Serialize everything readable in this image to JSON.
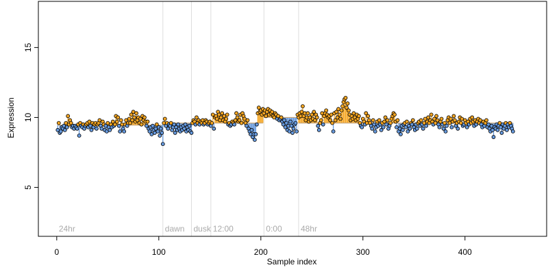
{
  "chart_data": {
    "type": "scatter",
    "title": "",
    "xlabel": "Sample index",
    "ylabel": "Expression",
    "xlim": [
      -18,
      480
    ],
    "ylim": [
      1.5,
      18.3
    ],
    "xticks": [
      0,
      100,
      200,
      300,
      400
    ],
    "xtick_labels": [
      "0",
      "100",
      "200",
      "300",
      "400"
    ],
    "yticks": [
      5,
      10,
      15
    ],
    "ytick_labels": [
      "5",
      "10",
      "15"
    ],
    "grid": false,
    "colors": {
      "above_baseline": "#f5a623",
      "below_baseline": "#6699dd",
      "marker_edge": "#000000",
      "segment_divider": "#dddddd",
      "segment_label": "#aaaaaa"
    },
    "segments": [
      {
        "label": "24hr",
        "start": 0,
        "end": 104,
        "baseline": 9.45
      },
      {
        "label": "dawn",
        "start": 104,
        "end": 132,
        "baseline": 9.6
      },
      {
        "label": "dusk",
        "start": 132,
        "end": 151,
        "baseline": 9.6
      },
      {
        "label": "12:00",
        "start": 151,
        "end": 203,
        "baseline": 9.6
      },
      {
        "label": "0:00",
        "start": 203,
        "end": 237,
        "baseline": 10.0
      },
      {
        "label": "48hr",
        "start": 237,
        "end": 464,
        "baseline": 9.6
      }
    ],
    "series": [
      {
        "x_start": 1,
        "x_step": 1,
        "y": [
          9.1,
          9.6,
          8.9,
          9.0,
          9.3,
          9.2,
          9.4,
          9.1,
          9.6,
          9.3,
          10.1,
          9.5,
          9.8,
          9.6,
          9.3,
          9.4,
          9.2,
          9.4,
          9.3,
          9.2,
          9.5,
          8.7,
          9.6,
          9.4,
          9.3,
          9.5,
          9.2,
          9.4,
          9.5,
          9.6,
          9.3,
          9.7,
          9.4,
          9.1,
          9.6,
          9.3,
          9.5,
          9.6,
          9.2,
          9.5,
          9.6,
          9.8,
          9.4,
          9.2,
          9.7,
          9.5,
          9.1,
          9.4,
          9.0,
          9.6,
          9.3,
          9.1,
          9.5,
          9.3,
          9.7,
          9.4,
          9.5,
          10.1,
          9.7,
          10.0,
          9.4,
          9.0,
          9.8,
          9.5,
          9.2,
          9.0,
          9.5,
          9.8,
          9.4,
          9.6,
          9.9,
          9.6,
          10.2,
          9.8,
          10.4,
          10.0,
          9.7,
          10.3,
          9.8,
          10.0,
          9.6,
          9.9,
          9.5,
          10.1,
          9.8,
          10.0,
          9.7,
          9.4,
          9.7,
          9.2,
          9.0,
          9.3,
          8.8,
          9.4,
          9.1,
          8.9,
          9.2,
          9.5,
          9.0,
          9.3,
          8.7,
          9.2,
          8.9,
          8.1,
          9.6,
          9.9,
          9.4,
          9.6,
          9.2,
          9.5,
          9.4,
          9.6,
          9.1,
          9.3,
          9.5,
          8.9,
          9.3,
          9.1,
          9.5,
          9.2,
          9.0,
          9.3,
          9.1,
          9.4,
          9.2,
          9.5,
          9.0,
          9.3,
          9.1,
          9.4,
          9.0,
          8.9,
          9.6,
          9.8,
          9.7,
          9.5,
          10.0,
          9.6,
          9.8,
          9.5,
          9.7,
          9.6,
          9.8,
          9.5,
          9.6,
          9.8,
          9.7,
          9.5,
          9.6,
          9.7,
          9.4,
          9.6,
          10.2,
          9.2,
          10.0,
          10.1,
          9.9,
          10.4,
          10.2,
          9.8,
          10.0,
          10.3,
          9.8,
          10.1,
          9.7,
          9.9,
          10.2,
          9.5,
          9.6,
          9.4,
          9.5,
          9.7,
          9.6,
          9.5,
          9.8,
          10.3,
          10.0,
          9.7,
          9.8,
          10.2,
          9.6,
          10.3,
          10.1,
          9.9,
          9.6,
          9.4,
          9.8,
          9.2,
          9.0,
          8.8,
          9.1,
          8.6,
          8.8,
          8.4,
          8.8,
          9.5,
          10.3,
          10.7,
          10.4,
          10.5,
          10.2,
          10.6,
          10.3,
          10.5,
          10.1,
          10.4,
          10.6,
          10.2,
          10.5,
          10.3,
          10.4,
          10.1,
          10.0,
          10.3,
          10.2,
          9.9,
          10.1,
          9.8,
          9.9,
          10.0,
          9.7,
          9.5,
          9.8,
          9.3,
          9.6,
          9.1,
          9.4,
          9.0,
          9.7,
          9.4,
          8.9,
          9.2,
          9.5,
          9.6,
          9.0,
          10.2,
          10.0,
          10.3,
          10.1,
          10.4,
          10.8,
          10.1,
          10.3,
          9.8,
          10.0,
          10.3,
          9.7,
          10.0,
          9.8,
          10.2,
          9.9,
          10.4,
          9.8,
          10.2,
          10.0,
          9.4,
          9.1,
          9.6,
          9.8,
          10.3,
          9.5,
          10.1,
          10.3,
          10.5,
          10.2,
          10.0,
          10.1,
          9.8,
          10.2,
          9.6,
          9.0,
          10.3,
          9.8,
          10.4,
          10.0,
          10.6,
          10.2,
          9.9,
          10.5,
          10.8,
          11.1,
          11.3,
          11.4,
          10.7,
          11.0,
          10.5,
          10.2,
          9.8,
          10.1,
          9.9,
          10.3,
          10.0,
          9.8,
          10.2,
          9.9,
          10.1,
          9.6,
          9.4,
          9.3,
          9.9,
          9.7,
          9.5,
          10.3,
          9.6,
          10.1,
          9.8,
          9.6,
          9.4,
          9.2,
          9.8,
          9.5,
          9.0,
          9.3,
          9.7,
          9.4,
          9.8,
          9.5,
          9.1,
          9.6,
          9.3,
          9.7,
          10.0,
          9.5,
          9.8,
          9.2,
          9.4,
          9.6,
          9.9,
          10.1,
          10.3,
          10.2,
          9.7,
          9.3,
          9.8,
          9.0,
          9.2,
          8.8,
          9.4,
          9.1,
          9.5,
          9.6,
          9.3,
          9.7,
          9.0,
          9.4,
          9.2,
          9.6,
          9.5,
          9.8,
          9.3,
          9.1,
          9.5,
          9.2,
          9.6,
          9.7,
          9.4,
          9.8,
          9.5,
          9.2,
          9.6,
          9.9,
          9.4,
          9.7,
          10.0,
          9.6,
          9.8,
          10.2,
          9.7,
          9.5,
          9.9,
          9.6,
          10.1,
          9.8,
          9.5,
          9.3,
          9.7,
          9.9,
          9.5,
          9.2,
          9.6,
          9.0,
          9.4,
          9.8,
          10.0,
          9.6,
          9.9,
          9.3,
          9.7,
          10.1,
          9.8,
          9.4,
          9.6,
          9.2,
          9.7,
          10.0,
          9.6,
          9.9,
          9.4,
          9.5,
          9.8,
          9.6,
          9.3,
          9.7,
          9.5,
          9.9,
          9.6,
          10.0,
          9.7,
          9.4,
          9.8,
          9.5,
          9.7,
          9.9,
          9.6,
          9.8,
          9.5,
          9.3,
          9.7,
          9.4,
          9.6,
          9.8,
          9.3,
          9.5,
          9.2,
          9.0,
          9.4,
          9.1,
          8.6,
          9.3,
          9.2,
          9.5,
          9.1,
          9.4,
          9.6,
          9.3,
          8.9,
          9.5,
          9.2,
          9.4,
          9.6,
          9.1,
          9.5,
          9.3,
          9.6,
          9.4,
          9.2,
          9.0
        ]
      }
    ]
  }
}
